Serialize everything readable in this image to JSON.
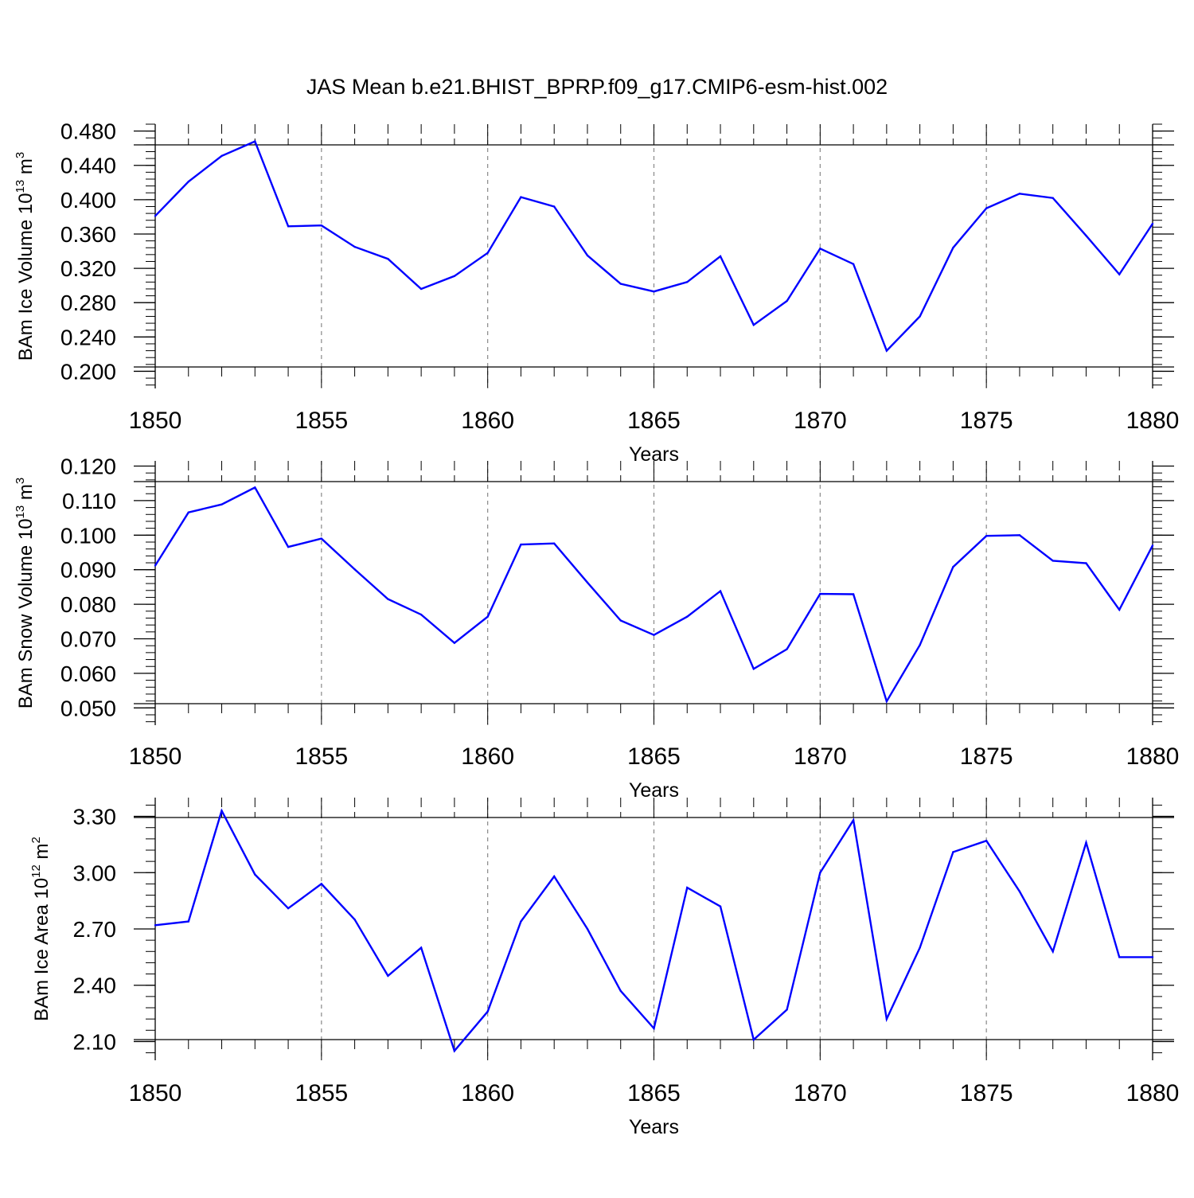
{
  "title": "JAS Mean b.e21.BHIST_BPRP.f09_g17.CMIP6-esm-hist.002",
  "colors": {
    "series": "#0000ff",
    "axis": "#000000",
    "grid": "#888888"
  },
  "chart_data": [
    {
      "type": "line",
      "ylabel": {
        "prefix": "BAm Ice Volume 10",
        "exp": "13",
        "mid": " m",
        "unit_exp": "3"
      },
      "xlabel": "Years",
      "x": [
        1850,
        1851,
        1852,
        1853,
        1854,
        1855,
        1856,
        1857,
        1858,
        1859,
        1860,
        1861,
        1862,
        1863,
        1864,
        1865,
        1866,
        1867,
        1868,
        1869,
        1870,
        1871,
        1872,
        1873,
        1874,
        1875,
        1876,
        1877,
        1878,
        1879,
        1880
      ],
      "values": [
        0.381,
        0.421,
        0.451,
        0.468,
        0.369,
        0.37,
        0.345,
        0.331,
        0.296,
        0.311,
        0.338,
        0.403,
        0.392,
        0.335,
        0.302,
        0.293,
        0.304,
        0.334,
        0.254,
        0.282,
        0.343,
        0.325,
        0.224,
        0.264,
        0.344,
        0.39,
        0.407,
        0.402,
        0.358,
        0.313,
        0.372
      ],
      "xlim": [
        1850,
        1880
      ],
      "ylim": [
        0.18,
        0.488
      ],
      "xticks": [
        "1850",
        "1855",
        "1860",
        "1865",
        "1870",
        "1875",
        "1880"
      ],
      "yticks": [
        "0.200",
        "0.240",
        "0.280",
        "0.320",
        "0.360",
        "0.400",
        "0.440",
        "0.480"
      ],
      "ytick_values": [
        0.2,
        0.24,
        0.28,
        0.32,
        0.36,
        0.4,
        0.44,
        0.48
      ],
      "yminor_step": 0.008
    },
    {
      "type": "line",
      "ylabel": {
        "prefix": "BAm Snow Volume 10",
        "exp": "13",
        "mid": " m",
        "unit_exp": "3"
      },
      "xlabel": "Years",
      "x": [
        1850,
        1851,
        1852,
        1853,
        1854,
        1855,
        1856,
        1857,
        1858,
        1859,
        1860,
        1861,
        1862,
        1863,
        1864,
        1865,
        1866,
        1867,
        1868,
        1869,
        1870,
        1871,
        1872,
        1873,
        1874,
        1875,
        1876,
        1877,
        1878,
        1879,
        1880
      ],
      "values": [
        0.0912,
        0.1066,
        0.1089,
        0.1138,
        0.0966,
        0.099,
        0.0901,
        0.0815,
        0.077,
        0.0688,
        0.0764,
        0.0973,
        0.0976,
        0.0863,
        0.0753,
        0.0711,
        0.0764,
        0.0838,
        0.0613,
        0.067,
        0.083,
        0.0829,
        0.0519,
        0.0682,
        0.0908,
        0.0998,
        0.1,
        0.0926,
        0.0919,
        0.0784,
        0.097
      ],
      "xlim": [
        1850,
        1880
      ],
      "ylim": [
        0.045,
        0.1215
      ],
      "xticks": [
        "1850",
        "1855",
        "1860",
        "1865",
        "1870",
        "1875",
        "1880"
      ],
      "yticks": [
        "0.050",
        "0.060",
        "0.070",
        "0.080",
        "0.090",
        "0.100",
        "0.110",
        "0.120"
      ],
      "ytick_values": [
        0.05,
        0.06,
        0.07,
        0.08,
        0.09,
        0.1,
        0.11,
        0.12
      ],
      "yminor_step": 0.002
    },
    {
      "type": "line",
      "ylabel": {
        "prefix": "BAm Ice Area 10",
        "exp": "12",
        "mid": " m",
        "unit_exp": "2"
      },
      "xlabel": "Years",
      "x": [
        1850,
        1851,
        1852,
        1853,
        1854,
        1855,
        1856,
        1857,
        1858,
        1859,
        1860,
        1861,
        1862,
        1863,
        1864,
        1865,
        1866,
        1867,
        1868,
        1869,
        1870,
        1871,
        1872,
        1873,
        1874,
        1875,
        1876,
        1877,
        1878,
        1879,
        1880
      ],
      "values": [
        2.72,
        2.74,
        3.33,
        2.99,
        2.81,
        2.94,
        2.75,
        2.45,
        2.6,
        2.05,
        2.26,
        2.74,
        2.98,
        2.7,
        2.37,
        2.17,
        2.92,
        2.82,
        2.11,
        2.27,
        3.0,
        3.28,
        2.22,
        2.6,
        3.11,
        3.17,
        2.9,
        2.58,
        3.16,
        2.55,
        2.55
      ],
      "xlim": [
        1850,
        1880
      ],
      "ylim": [
        2.0,
        3.4
      ],
      "xticks": [
        "1850",
        "1855",
        "1860",
        "1865",
        "1870",
        "1875",
        "1880"
      ],
      "yticks": [
        "2.10",
        "2.40",
        "2.70",
        "3.00",
        "3.30"
      ],
      "ytick_values": [
        2.1,
        2.4,
        2.7,
        3.0,
        3.3
      ],
      "yminor_step": 0.06
    }
  ]
}
